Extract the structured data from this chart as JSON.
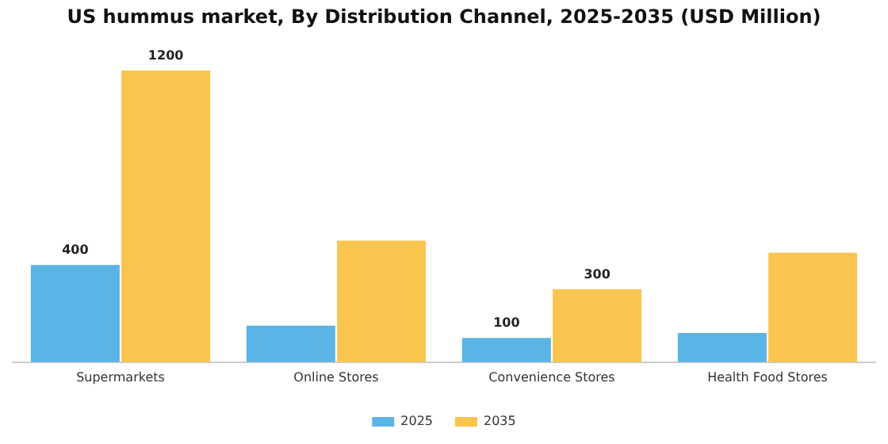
{
  "chart_data": {
    "type": "bar",
    "title": "US hummus market, By Distribution Channel, 2025-2035 (USD Million)",
    "categories": [
      "Supermarkets",
      "Online Stores",
      "Convenience Stores",
      "Health Food Stores"
    ],
    "series": [
      {
        "name": "2025",
        "color": "#5ab4e5",
        "values": [
          400,
          150,
          100,
          120
        ],
        "value_labels": [
          "400",
          null,
          "100",
          null
        ]
      },
      {
        "name": "2035",
        "color": "#f9c54e",
        "values": [
          1200,
          500,
          300,
          450
        ],
        "value_labels": [
          "1200",
          null,
          "300",
          null
        ]
      }
    ],
    "legend": "bottom",
    "grid": false
  }
}
